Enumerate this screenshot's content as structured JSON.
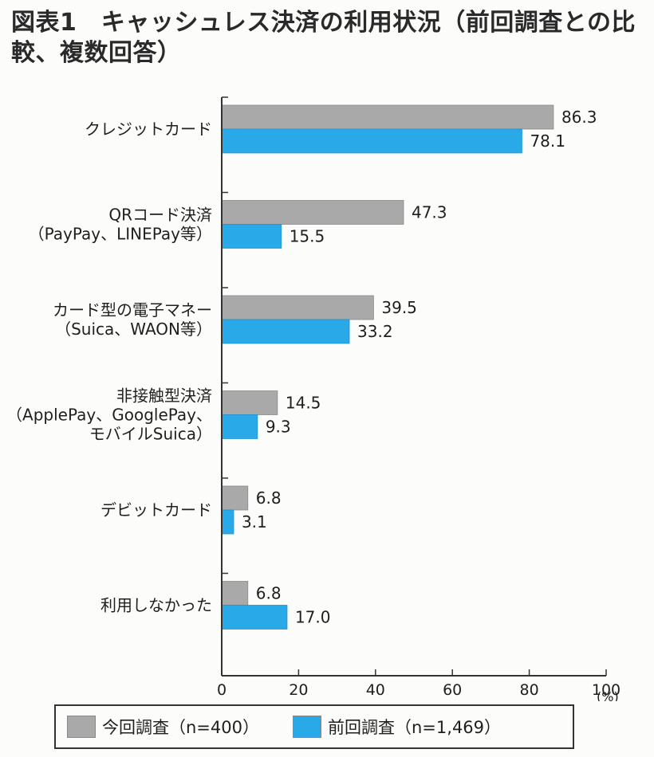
{
  "title": "図表1　キャッシュレス決済の利用状況（前回調査との比較、複数回答）",
  "chart_data": {
    "type": "bar",
    "orientation": "horizontal",
    "categories": [
      [
        "クレジットカード"
      ],
      [
        "QRコード決済",
        "（PayPay、LINEPay等）"
      ],
      [
        "カード型の電子マネー",
        "（Suica、WAON等）"
      ],
      [
        "非接触型決済",
        "（ApplePay、GooglePay、",
        "モバイルSuica）"
      ],
      [
        "デビットカード"
      ],
      [
        "利用しなかった"
      ]
    ],
    "series": [
      {
        "name": "今回調査（n=400）",
        "color": "#a9a9a9",
        "values": [
          86.3,
          47.3,
          39.5,
          14.5,
          6.8,
          6.8
        ]
      },
      {
        "name": "前回調査（n=1,469）",
        "color": "#29a9e8",
        "values": [
          78.1,
          15.5,
          33.2,
          9.3,
          3.1,
          17.0
        ]
      }
    ],
    "value_labels": [
      [
        "86.3",
        "47.3",
        "39.5",
        "14.5",
        "6.8",
        "6.8"
      ],
      [
        "78.1",
        "15.5",
        "33.2",
        "9.3",
        "3.1",
        "17.0"
      ]
    ],
    "xlim": [
      0,
      100
    ],
    "xticks": [
      "0",
      "20",
      "40",
      "60",
      "80",
      "100"
    ],
    "xunit": "(%)",
    "grid": false,
    "legend_position": "bottom"
  }
}
